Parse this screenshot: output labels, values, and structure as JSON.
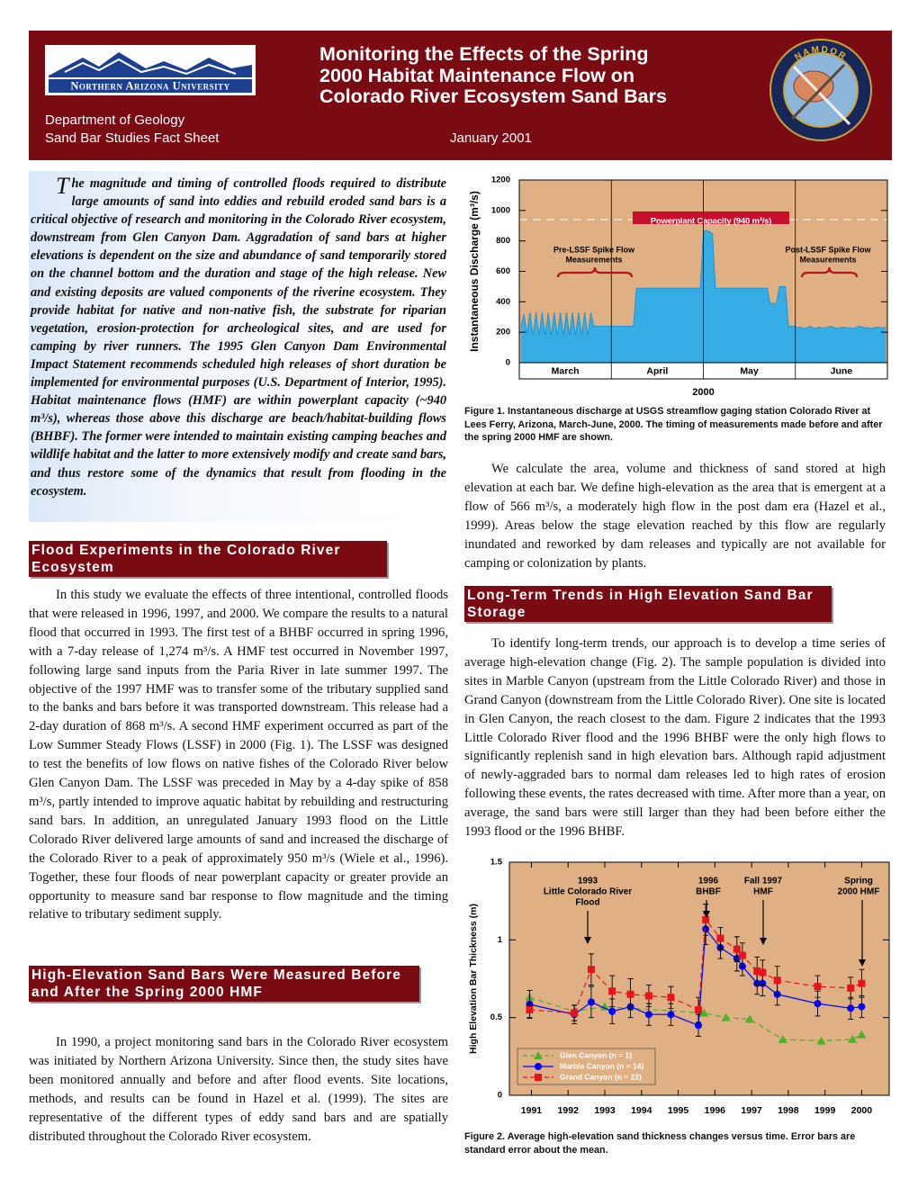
{
  "header": {
    "university": "Northern Arizona University",
    "title_lines": [
      "Monitoring the Effects of the Spring",
      "2000 Habitat Maintenance Flow on",
      "Colorado River Ecosystem Sand Bars"
    ],
    "department": "Department of Geology",
    "series": "Sand Bar Studies Fact Sheet",
    "date": "January 2001",
    "emblem": "NAMDOR"
  },
  "intro": "The magnitude and timing of controlled floods required to distribute large amounts of sand into eddies and rebuild eroded sand bars is a critical objective of research and monitoring in the Colorado River ecosystem, downstream from Glen Canyon Dam. Aggradation of sand bars at higher elevations is dependent on the size and abundance of sand temporarily stored on the channel bottom and the duration and stage of the high release. New and existing deposits are valued components of the riverine ecosystem. They provide habitat for native and non-native fish, the substrate for riparian vegetation, erosion-protection for archeological sites, and are used for camping by river runners. The 1995 Glen Canyon Dam Environmental Impact Statement recommends scheduled high releases of short duration be implemented for environmental purposes (U.S. Department of Interior, 1995). Habitat maintenance flows (HMF) are within powerplant capacity (~940 m³/s), whereas those above this discharge are beach/habitat-building flows (BHBF). The former were intended to maintain existing camping beaches and wildlife habitat and the latter to more extensively modify and create sand bars, and thus restore some of the dynamics that result from flooding in the ecosystem.",
  "sections": [
    {
      "heading": "Flood Experiments in the Colorado River Ecosystem",
      "paragraphs": [
        "In this study we evaluate the effects of three intentional, controlled floods that were released in 1996, 1997, and 2000. We compare the results to a natural flood that occurred in 1993. The first test of a BHBF occurred in spring 1996, with a 7-day release of 1,274 m³/s. A HMF test occurred in November 1997, following large sand inputs from the Paria River in late summer 1997. The objective of the 1997 HMF was to transfer some of the tributary supplied sand to the banks and bars before it was transported downstream. This release had a 2-day duration of 868 m³/s. A second HMF experiment occurred as part of the Low Summer Steady Flows (LSSF) in 2000 (Fig. 1). The LSSF was designed to test the benefits of low flows on native fishes of the Colorado River below Glen Canyon Dam. The LSSF was preceded in May by a 4-day spike of 858 m³/s, partly intended to improve aquatic habitat by rebuilding and restructuring sand bars. In addition, an unregulated January 1993 flood on the Little Colorado River delivered large amounts of sand and increased the discharge of the Colorado River to a peak of approximately 950 m³/s (Wiele et al., 1996). Together, these four floods of near powerplant capacity or greater provide an opportunity to measure sand bar response to flow magnitude and the timing relative to tributary sediment supply."
      ]
    },
    {
      "heading": "High-Elevation Sand Bars Were Measured Before and After the Spring 2000 HMF",
      "paragraphs": [
        "In 1990, a project monitoring sand bars in the Colorado River ecosystem was initiated by Northern Arizona University. Since then, the study sites have been monitored annually and before and after flood events. Site locations, methods, and results can be found in Hazel et al. (1999). The sites are representative of the different types of eddy sand bars and are spatially distributed throughout the Colorado River ecosystem.",
        "We calculate the area, volume and thickness of sand stored at high elevation at each bar. We define high-elevation as the area that is emergent at a flow of 566 m³/s, a moderately high flow in the post dam era (Hazel et al., 1999). Areas below the stage elevation reached by this flow are regularly inundated and reworked by dam releases and typically are not available for camping or colonization by plants."
      ]
    },
    {
      "heading": "Long-Term Trends in High Elevation Sand Bar Storage",
      "paragraphs": [
        "To identify long-term trends, our approach is to develop a time series of average high-elevation change (Fig. 2). The sample population is divided into sites in Marble Canyon (upstream from the Little Colorado River) and those in Grand Canyon (downstream from the Little Colorado River). One site is located in Glen Canyon, the reach closest to the dam. Figure 2 indicates that the 1993 Little Colorado River flood and the 1996 BHBF were the only high flows to significantly replenish sand in high elevation bars. Although rapid adjustment of newly-aggraded bars to normal dam releases led to high rates of erosion following these events, the rates decreased with time. After more than a year, on average, the sand bars were still larger than they had been before either the 1993 flood or the 1996 BHBF."
      ]
    }
  ],
  "chart_data": [
    {
      "type": "area",
      "caption": "Figure 1.  Instantaneous discharge at USGS streamflow gaging station Colorado River at Lees Ferry, Arizona, March-June, 2000.  The timing of measurements made before and after the spring 2000 HMF are shown.",
      "y_label": "Instantaneous Discharge (m³/s)",
      "x_label": "2000",
      "months": [
        "March",
        "April",
        "May",
        "June"
      ],
      "color": "#35ace4",
      "background": "#dfb083",
      "values": [
        230,
        320,
        190,
        330,
        180,
        330,
        180,
        330,
        180,
        330,
        180,
        330,
        180,
        330,
        180,
        330,
        180,
        330,
        180,
        330,
        180,
        330,
        180,
        330,
        240,
        240,
        240,
        240,
        240,
        240,
        240,
        240,
        240,
        240,
        240,
        240,
        240,
        240,
        490,
        490,
        490,
        490,
        490,
        490,
        490,
        490,
        490,
        490,
        490,
        490,
        490,
        490,
        490,
        490,
        490,
        490,
        490,
        490,
        490,
        490,
        860,
        870,
        860,
        850,
        490,
        490,
        490,
        490,
        490,
        490,
        490,
        490,
        490,
        490,
        490,
        490,
        490,
        490,
        490,
        490,
        490,
        490,
        390,
        390,
        390,
        500,
        500,
        500,
        240,
        240,
        240,
        230,
        235,
        225,
        230,
        240,
        230,
        225,
        235,
        230,
        230,
        235,
        240,
        230,
        225,
        230,
        235,
        230,
        230,
        225,
        230,
        240,
        235,
        230,
        230,
        225,
        230,
        235,
        230,
        230,
        235
      ],
      "ylim": [
        0,
        1200
      ],
      "yticks": [
        0,
        200,
        400,
        600,
        800,
        1000,
        1200
      ],
      "reference_line": {
        "value": 940,
        "label": "Powerplant Capacity (940 m³/s)",
        "color": "#c8102e"
      },
      "annotations": [
        [
          "Pre-LSSF Spike Flow",
          "Measurements"
        ],
        [
          "Post-LSSF Spike Flow",
          "Measurements"
        ]
      ]
    },
    {
      "type": "line",
      "caption": "Figure 2.  Average high-elevation sand thickness changes versus time. Error bars are standard error about the mean.",
      "y_label": "High Elevation Bar Thickness (m)",
      "background": "#dfb083",
      "xlim": [
        1990.4,
        2000.75
      ],
      "xticks": [
        1991,
        1992,
        1993,
        1994,
        1995,
        1996,
        1997,
        1998,
        1999,
        2000
      ],
      "ylim": [
        0,
        1.5
      ],
      "yticks": [
        0,
        0.5,
        1,
        1.5
      ],
      "legend": "lower left",
      "annotations": [
        [
          "1993",
          "Little Colorado River",
          "Flood"
        ],
        [
          "1996",
          "BHBF"
        ],
        [
          "Fall 1997",
          "HMF"
        ],
        [
          "Spring",
          "2000 HMF"
        ]
      ],
      "series": [
        {
          "name": "Glen Canyon (n = 1)",
          "color": "#4fb02c",
          "marker": "triangle",
          "dashed": true,
          "x": [
            1990.95,
            1992.17,
            1993.0,
            1995.7,
            1996.3,
            1996.95,
            1997.85,
            1998.9,
            1999.75,
            2000.0
          ],
          "values": [
            0.63,
            0.54,
            0.57,
            0.53,
            0.5,
            0.49,
            0.36,
            0.35,
            0.36,
            0.39
          ]
        },
        {
          "name": "Marble Canyon (n = 14)",
          "color": "#0000ff",
          "marker": "circle",
          "dashed": false,
          "x": [
            1990.95,
            1992.17,
            1992.63,
            1993.2,
            1993.7,
            1994.2,
            1994.8,
            1995.55,
            1995.75,
            1996.15,
            1996.6,
            1996.75,
            1997.15,
            1997.3,
            1997.7,
            1998.8,
            1999.7,
            2000.0
          ],
          "values": [
            0.585,
            0.52,
            0.6,
            0.54,
            0.57,
            0.52,
            0.52,
            0.45,
            1.07,
            0.95,
            0.88,
            0.83,
            0.72,
            0.72,
            0.65,
            0.59,
            0.56,
            0.57
          ],
          "errors": [
            0.09,
            0.06,
            0.1,
            0.08,
            0.07,
            0.07,
            0.07,
            0.07,
            0.1,
            0.07,
            0.08,
            0.06,
            0.07,
            0.08,
            0.07,
            0.08,
            0.07,
            0.07
          ]
        },
        {
          "name": "Grand Canyon (n = 22)",
          "color": "#e8141d",
          "marker": "square",
          "dashed": true,
          "x": [
            1990.95,
            1992.17,
            1992.63,
            1993.2,
            1993.7,
            1994.2,
            1994.8,
            1995.55,
            1995.75,
            1996.15,
            1996.6,
            1996.75,
            1997.15,
            1997.3,
            1997.7,
            1998.8,
            1999.7,
            2000.0
          ],
          "values": [
            0.55,
            0.53,
            0.81,
            0.67,
            0.65,
            0.64,
            0.63,
            0.55,
            1.13,
            1.01,
            0.94,
            0.9,
            0.8,
            0.79,
            0.74,
            0.7,
            0.69,
            0.72
          ],
          "errors": [
            0.05,
            0.05,
            0.1,
            0.1,
            0.1,
            0.07,
            0.07,
            0.08,
            0.1,
            0.07,
            0.08,
            0.08,
            0.09,
            0.08,
            0.09,
            0.07,
            0.07,
            0.09
          ]
        }
      ]
    }
  ]
}
